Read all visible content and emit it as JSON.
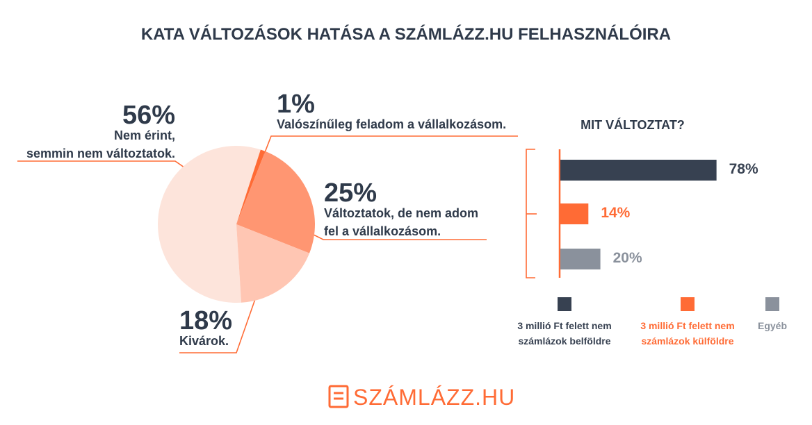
{
  "title": "KATA VÁLTOZÁSOK HATÁSA A SZÁMLÁZZ.HU FELHASZNÁLÓIRA",
  "chart_data": [
    {
      "type": "pie",
      "categories": [
        "Nem érint,\nsemmin nem változtatok.",
        "Valószínűleg feladom a vállalkozásom.",
        "Változtatok, de nem adom\nfel a vállalkozásom.",
        "Kivárok."
      ],
      "values": [
        56,
        1,
        25,
        18
      ],
      "value_labels": [
        "56%",
        "1%",
        "25%",
        "18%"
      ],
      "colors": [
        "#fde4db",
        "#ff6b35",
        "#ff9672",
        "#ffc6b3"
      ]
    },
    {
      "type": "bar",
      "orientation": "horizontal",
      "title": "MIT VÁLTOZTAT?",
      "categories": [
        "3 millió Ft felett nem\nszámlázok belföldre",
        "3 millió Ft felett nem\nszámlázok külföldre",
        "Egyéb"
      ],
      "values": [
        78,
        14,
        20
      ],
      "value_labels": [
        "78%",
        "14%",
        "20%"
      ],
      "colors": [
        "#374151",
        "#ff6b35",
        "#8a919c"
      ]
    }
  ],
  "logo": "SZÁMLÁZZ.HU"
}
